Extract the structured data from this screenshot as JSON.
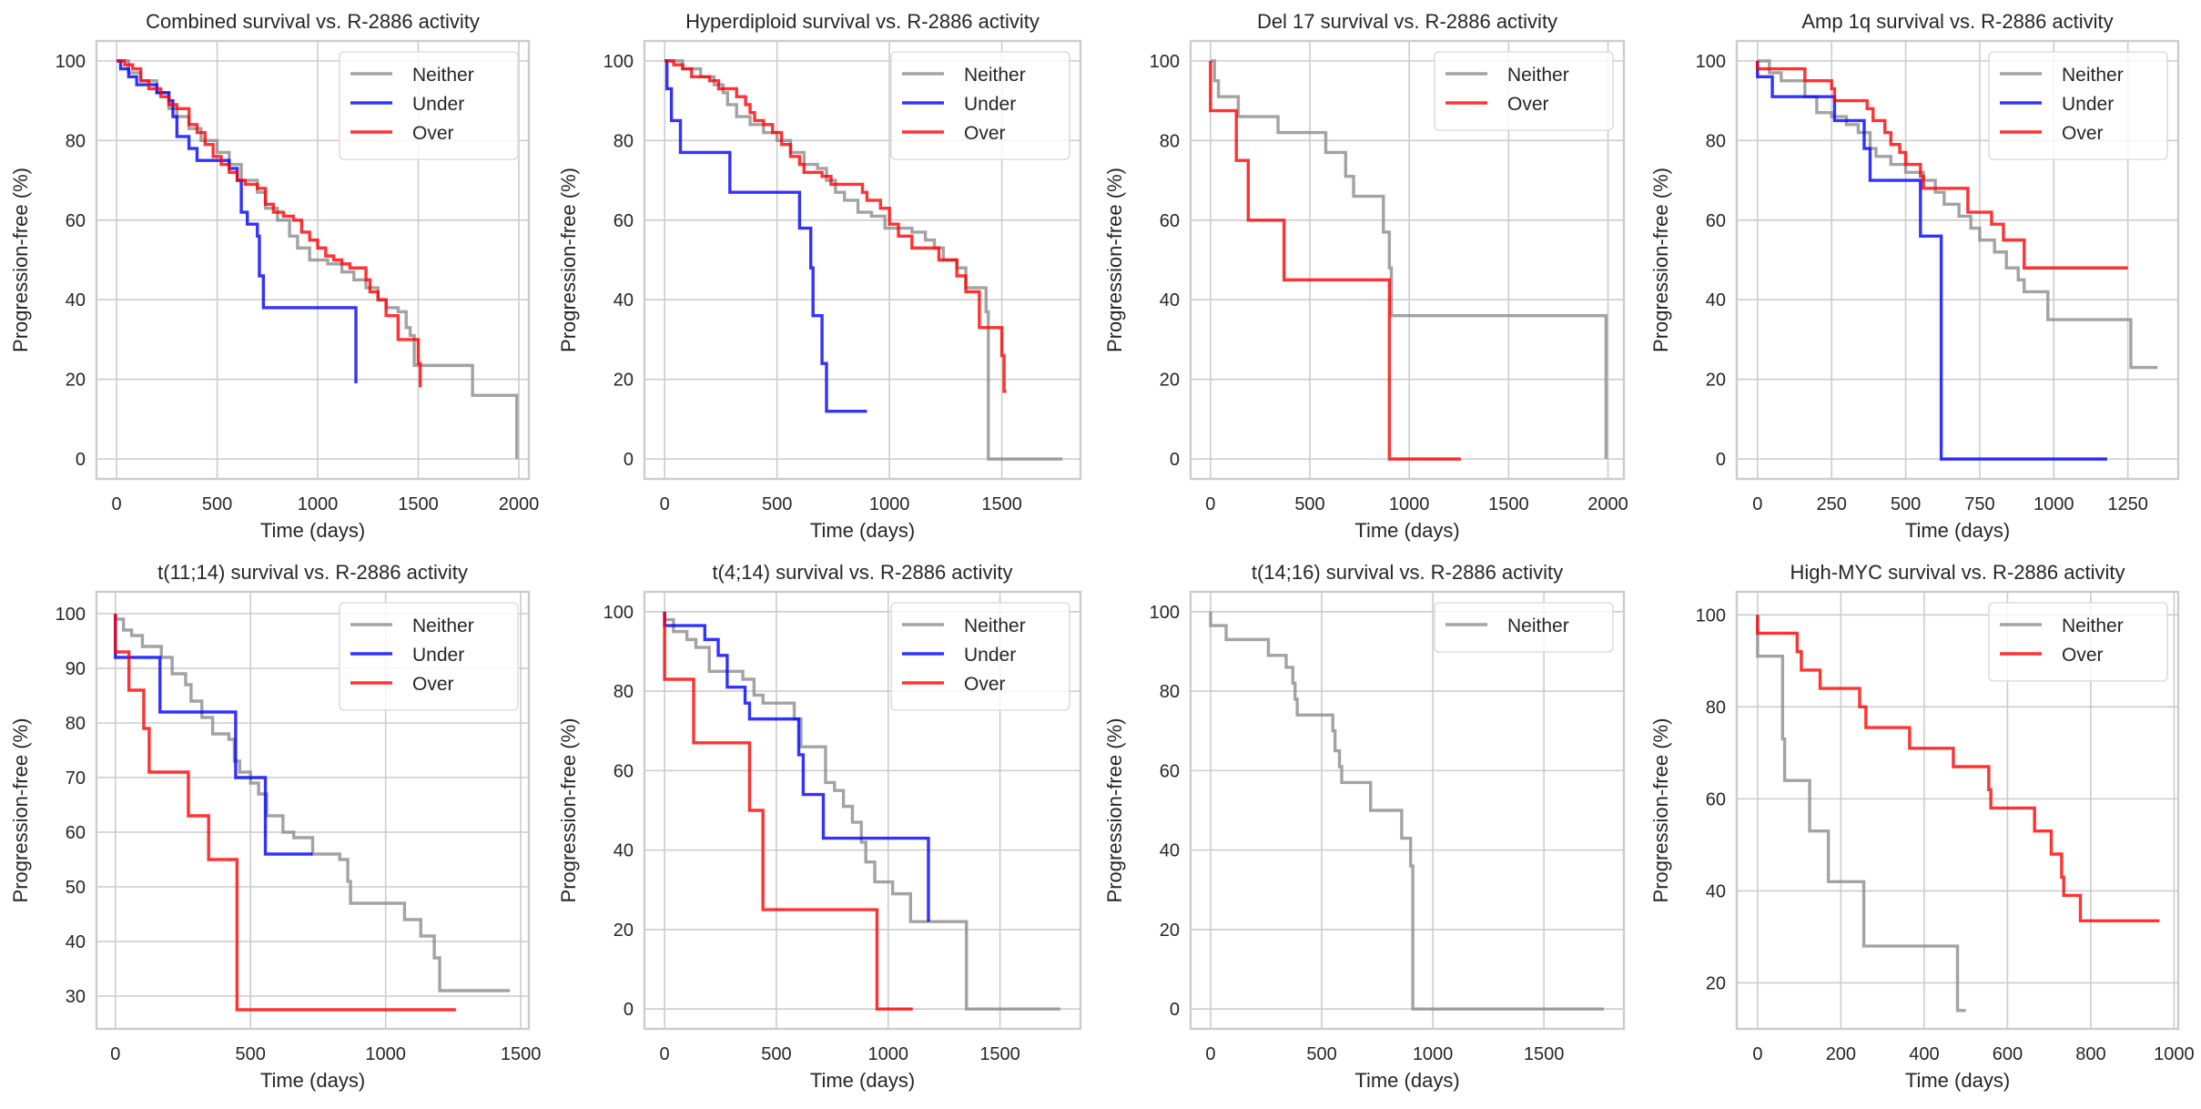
{
  "figure": {
    "suptitle": ""
  },
  "colors": {
    "Neither": "#8c8c8c",
    "Under": "#0000ff",
    "Over": "#ff0000"
  },
  "chart_data": [
    {
      "type": "line",
      "step": true,
      "title": "Combined survival vs. R-2886 activity",
      "xlabel": "Time (days)",
      "ylabel": "Progression-free (%)",
      "xlim": [
        -100,
        2050
      ],
      "ylim": [
        -5,
        105
      ],
      "xticks": [
        0,
        500,
        1000,
        1500,
        2000
      ],
      "yticks": [
        0,
        20,
        40,
        60,
        80,
        100
      ],
      "grid": true,
      "legend": "top-right",
      "series": [
        {
          "name": "Neither",
          "x": [
            0,
            60,
            120,
            200,
            260,
            300,
            360,
            420,
            500,
            560,
            620,
            700,
            740,
            800,
            860,
            900,
            960,
            1050,
            1120,
            1180,
            1240,
            1300,
            1340,
            1400,
            1440,
            1460,
            1480,
            1750,
            1770,
            1990
          ],
          "y": [
            100,
            97,
            95,
            92,
            88,
            86,
            83,
            80,
            77,
            74,
            70,
            67,
            63,
            60,
            56,
            53,
            50,
            49,
            47,
            45,
            43,
            40,
            38,
            37,
            33,
            31,
            23.5,
            23.5,
            16,
            0
          ]
        },
        {
          "name": "Under",
          "x": [
            0,
            20,
            60,
            100,
            160,
            200,
            260,
            280,
            300,
            360,
            400,
            450,
            560,
            600,
            620,
            650,
            700,
            710,
            730,
            890,
            1190
          ],
          "y": [
            100,
            98,
            96,
            94,
            94,
            92,
            90,
            86,
            81,
            78,
            75,
            75,
            73,
            70,
            62,
            59,
            56,
            46,
            38,
            38,
            19
          ]
        },
        {
          "name": "Over",
          "x": [
            0,
            40,
            80,
            120,
            160,
            220,
            260,
            300,
            360,
            400,
            440,
            480,
            520,
            560,
            600,
            640,
            700,
            740,
            780,
            830,
            880,
            920,
            960,
            1000,
            1040,
            1080,
            1120,
            1160,
            1220,
            1240,
            1260,
            1300,
            1340,
            1400,
            1500,
            1510
          ],
          "y": [
            100,
            99,
            98,
            95,
            93,
            91,
            89,
            88,
            84,
            82,
            79,
            76,
            74,
            72,
            70,
            69,
            68,
            64,
            62,
            61,
            60,
            57,
            55,
            53,
            51,
            50,
            49,
            48,
            48,
            45,
            42,
            40,
            36,
            30,
            24,
            18
          ]
        }
      ]
    },
    {
      "type": "line",
      "step": true,
      "title": "Hyperdiploid survival vs. R-2886 activity",
      "xlabel": "Time (days)",
      "ylabel": "Progression-free (%)",
      "xlim": [
        -90,
        1850
      ],
      "ylim": [
        -5,
        105
      ],
      "xticks": [
        0,
        500,
        1000,
        1500
      ],
      "yticks": [
        0,
        20,
        40,
        60,
        80,
        100
      ],
      "grid": true,
      "legend": "top-right",
      "series": [
        {
          "name": "Neither",
          "x": [
            0,
            80,
            160,
            220,
            260,
            280,
            320,
            380,
            440,
            500,
            560,
            620,
            680,
            720,
            760,
            800,
            860,
            920,
            980,
            1100,
            1160,
            1200,
            1240,
            1300,
            1340,
            1420,
            1430,
            1440,
            1770
          ],
          "y": [
            100,
            98,
            96,
            94,
            92,
            89,
            86,
            84,
            82,
            80,
            77,
            74,
            73,
            70,
            67,
            65,
            62,
            61,
            58,
            57,
            55,
            53,
            50,
            48,
            43,
            43,
            37,
            0,
            0
          ]
        },
        {
          "name": "Under",
          "x": [
            0,
            10,
            30,
            70,
            290,
            600,
            650,
            660,
            700,
            720,
            900
          ],
          "y": [
            100,
            93,
            85,
            77,
            67,
            58,
            48,
            36,
            24,
            12,
            12
          ]
        },
        {
          "name": "Over",
          "x": [
            0,
            40,
            80,
            120,
            200,
            240,
            320,
            360,
            380,
            400,
            440,
            480,
            520,
            560,
            600,
            620,
            700,
            740,
            880,
            900,
            960,
            1000,
            1040,
            1100,
            1220,
            1300,
            1340,
            1400,
            1500,
            1510,
            1520
          ],
          "y": [
            100,
            99,
            98,
            96,
            95,
            93,
            91,
            89,
            87,
            85,
            84,
            82,
            79,
            76,
            74,
            72,
            71,
            69,
            67,
            65,
            63,
            59,
            56,
            53,
            50,
            46,
            42,
            33,
            26,
            17,
            17
          ]
        }
      ]
    },
    {
      "type": "line",
      "step": true,
      "title": "Del 17 survival vs. R-2886 activity",
      "xlabel": "Time (days)",
      "ylabel": "Progression-free (%)",
      "xlim": [
        -100,
        2080
      ],
      "ylim": [
        -5,
        105
      ],
      "xticks": [
        0,
        500,
        1000,
        1500,
        2000
      ],
      "yticks": [
        0,
        20,
        40,
        60,
        80,
        100
      ],
      "grid": true,
      "legend": "top-right",
      "series": [
        {
          "name": "Neither",
          "x": [
            0,
            20,
            40,
            140,
            340,
            580,
            680,
            720,
            870,
            900,
            910,
            1990
          ],
          "y": [
            100,
            95,
            91,
            86,
            82,
            77,
            71,
            66,
            57,
            48,
            36,
            0
          ]
        },
        {
          "name": "Over",
          "x": [
            0,
            130,
            190,
            370,
            900,
            1260
          ],
          "y": [
            87.5,
            75,
            60,
            45,
            0,
            0
          ]
        }
      ]
    },
    {
      "type": "line",
      "step": true,
      "title": "Amp 1q survival vs. R-2886 activity",
      "xlabel": "Time (days)",
      "ylabel": "Progression-free (%)",
      "xlim": [
        -70,
        1420
      ],
      "ylim": [
        -5,
        105
      ],
      "xticks": [
        0,
        250,
        500,
        750,
        1000,
        1250
      ],
      "yticks": [
        0,
        20,
        40,
        60,
        80,
        100
      ],
      "grid": true,
      "legend": "top-right",
      "series": [
        {
          "name": "Neither",
          "x": [
            0,
            40,
            80,
            160,
            200,
            250,
            300,
            340,
            380,
            400,
            450,
            500,
            560,
            600,
            630,
            680,
            720,
            750,
            800,
            840,
            880,
            900,
            980,
            1260,
            1350
          ],
          "y": [
            100,
            97,
            95,
            91,
            87,
            86,
            84,
            82,
            78,
            76,
            74,
            72,
            70,
            67,
            64,
            61,
            58,
            55,
            52,
            48,
            45,
            42,
            35,
            23,
            23
          ]
        },
        {
          "name": "Under",
          "x": [
            0,
            50,
            260,
            360,
            380,
            550,
            620,
            1180
          ],
          "y": [
            96,
            91,
            85,
            78,
            70,
            56,
            0,
            0
          ]
        },
        {
          "name": "Over",
          "x": [
            0,
            160,
            250,
            260,
            370,
            390,
            430,
            450,
            480,
            500,
            550,
            560,
            710,
            790,
            830,
            900,
            1250
          ],
          "y": [
            98,
            95,
            93,
            90,
            88,
            85,
            82,
            79,
            77,
            74,
            71,
            68,
            62,
            59,
            55,
            48,
            48
          ]
        }
      ]
    },
    {
      "type": "line",
      "step": true,
      "title": "t(11;14) survival vs. R-2886 activity",
      "xlabel": "Time (days)",
      "ylabel": "Progression-free (%)",
      "xlim": [
        -70,
        1530
      ],
      "ylim": [
        24,
        104
      ],
      "xticks": [
        0,
        500,
        1000,
        1500
      ],
      "yticks": [
        30,
        40,
        50,
        60,
        70,
        80,
        90,
        100
      ],
      "grid": true,
      "legend": "top-right",
      "series": [
        {
          "name": "Neither",
          "x": [
            0,
            30,
            60,
            100,
            170,
            210,
            260,
            280,
            320,
            360,
            420,
            440,
            460,
            500,
            530,
            560,
            620,
            660,
            730,
            830,
            860,
            870,
            1070,
            1130,
            1180,
            1200,
            1460
          ],
          "y": [
            99,
            97,
            96,
            94,
            92,
            89,
            87,
            84,
            81,
            78,
            77,
            73,
            71,
            69,
            67,
            63,
            60,
            59,
            56,
            55,
            51,
            47,
            44,
            41,
            37,
            31,
            31
          ]
        },
        {
          "name": "Under",
          "x": [
            0,
            165,
            445,
            555,
            730
          ],
          "y": [
            92,
            82,
            70,
            56,
            56
          ]
        },
        {
          "name": "Over",
          "x": [
            0,
            50,
            105,
            125,
            270,
            345,
            450,
            1260
          ],
          "y": [
            93,
            86,
            79,
            71,
            63,
            55,
            27.5,
            27.5
          ]
        }
      ]
    },
    {
      "type": "line",
      "step": true,
      "title": "t(4;14) survival vs. R-2886 activity",
      "xlabel": "Time (days)",
      "ylabel": "Progression-free (%)",
      "xlim": [
        -90,
        1860
      ],
      "ylim": [
        -5,
        105
      ],
      "xticks": [
        0,
        500,
        1000,
        1500
      ],
      "yticks": [
        0,
        20,
        40,
        60,
        80,
        100
      ],
      "grid": true,
      "legend": "top-right",
      "series": [
        {
          "name": "Neither",
          "x": [
            0,
            40,
            100,
            140,
            200,
            350,
            400,
            440,
            580,
            610,
            720,
            760,
            800,
            840,
            880,
            900,
            940,
            1020,
            1100,
            1350,
            1770
          ],
          "y": [
            98,
            95,
            93,
            91,
            85,
            83,
            79,
            77,
            73,
            66,
            57,
            55,
            51,
            47,
            42,
            37,
            32,
            29,
            22,
            0,
            0
          ]
        },
        {
          "name": "Under",
          "x": [
            0,
            180,
            240,
            280,
            360,
            380,
            600,
            620,
            710,
            1180
          ],
          "y": [
            96.5,
            93,
            89,
            81,
            77,
            73,
            64,
            54,
            43,
            22
          ]
        },
        {
          "name": "Over",
          "x": [
            0,
            130,
            380,
            440,
            950,
            1110
          ],
          "y": [
            83,
            67,
            50,
            25,
            0,
            0
          ]
        }
      ]
    },
    {
      "type": "line",
      "step": true,
      "title": "t(14;16) survival vs. R-2886 activity",
      "xlabel": "Time (days)",
      "ylabel": "Progression-free (%)",
      "xlim": [
        -90,
        1860
      ],
      "ylim": [
        -5,
        105
      ],
      "xticks": [
        0,
        500,
        1000,
        1500
      ],
      "yticks": [
        0,
        20,
        40,
        60,
        80,
        100
      ],
      "grid": true,
      "legend": "top-right",
      "series": [
        {
          "name": "Neither",
          "x": [
            0,
            70,
            260,
            340,
            370,
            380,
            390,
            550,
            560,
            580,
            590,
            720,
            860,
            900,
            910,
            1770
          ],
          "y": [
            96.5,
            93,
            89,
            86,
            82,
            78,
            74,
            70,
            65,
            61,
            57,
            50,
            43,
            36,
            0,
            0
          ]
        }
      ]
    },
    {
      "type": "line",
      "step": true,
      "title": "High-MYC survival vs. R-2886 activity",
      "xlabel": "Time (days)",
      "ylabel": "Progression-free (%)",
      "xlim": [
        -50,
        1010
      ],
      "ylim": [
        10,
        105
      ],
      "xticks": [
        0,
        200,
        400,
        600,
        800,
        1000
      ],
      "yticks": [
        20,
        40,
        60,
        80,
        100
      ],
      "grid": true,
      "legend": "top-right",
      "series": [
        {
          "name": "Neither",
          "x": [
            0,
            60,
            65,
            125,
            170,
            255,
            480,
            500
          ],
          "y": [
            91,
            73,
            64,
            53,
            42,
            28,
            14,
            14
          ]
        },
        {
          "name": "Over",
          "x": [
            0,
            95,
            105,
            150,
            245,
            260,
            365,
            470,
            555,
            560,
            665,
            705,
            730,
            735,
            775,
            965
          ],
          "y": [
            96,
            92,
            88,
            84,
            80,
            75.5,
            71,
            67,
            62,
            58,
            53,
            48,
            43,
            39,
            33.5,
            33.5
          ]
        }
      ]
    }
  ]
}
